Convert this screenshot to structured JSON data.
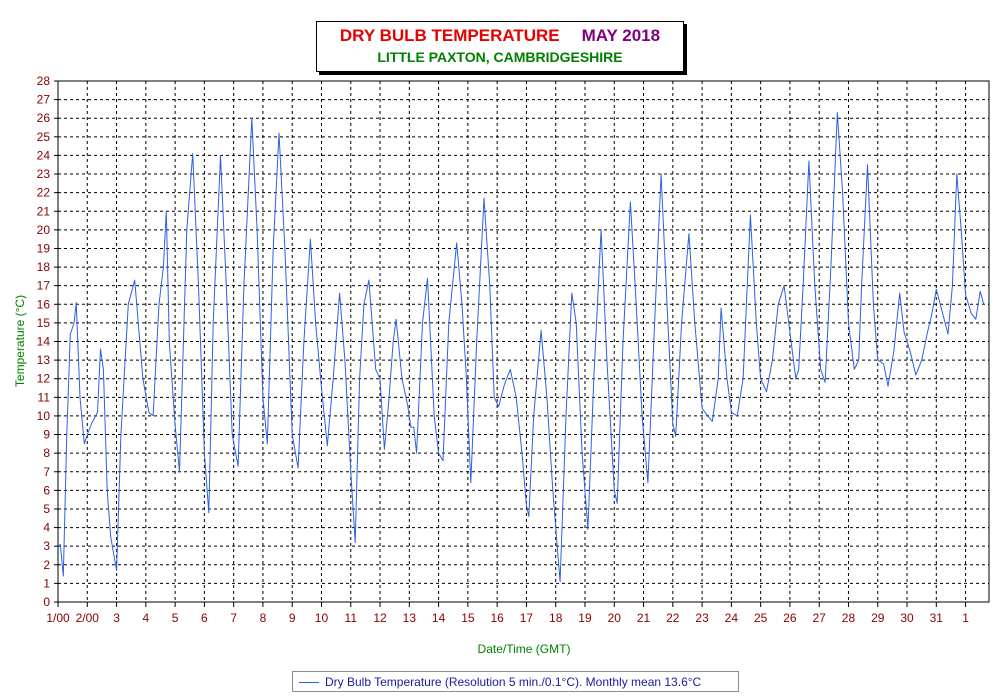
{
  "title": {
    "main": "DRY BULB TEMPERATURE",
    "month": "MAY 2018",
    "subtitle": "LITTLE PAXTON, CAMBRIDGESHIRE"
  },
  "legend": {
    "label": "Dry Bulb Temperature (Resolution 5 min./0.1°C). Monthly mean 13.6°C"
  },
  "colors": {
    "series": "#2b62e3",
    "axis_labels": "#8b0000",
    "axis_titles": "#008000",
    "title_main": "#e60000",
    "title_month": "#800080",
    "subtitle": "#008000"
  },
  "chart_data": {
    "type": "line",
    "xlabel": "Date/Time (GMT)",
    "ylabel": "Temperature (°C)",
    "ylim": [
      0,
      28
    ],
    "xlim": [
      0,
      31.8
    ],
    "grid": true,
    "legend_position": "bottom-center",
    "x_ticks": [
      {
        "x": 0,
        "label": "1/00"
      },
      {
        "x": 1,
        "label": "2/00"
      },
      {
        "x": 2,
        "label": "3"
      },
      {
        "x": 3,
        "label": "4"
      },
      {
        "x": 4,
        "label": "5"
      },
      {
        "x": 5,
        "label": "6"
      },
      {
        "x": 6,
        "label": "7"
      },
      {
        "x": 7,
        "label": "8"
      },
      {
        "x": 8,
        "label": "9"
      },
      {
        "x": 9,
        "label": "10"
      },
      {
        "x": 10,
        "label": "11"
      },
      {
        "x": 11,
        "label": "12"
      },
      {
        "x": 12,
        "label": "13"
      },
      {
        "x": 13,
        "label": "14"
      },
      {
        "x": 14,
        "label": "15"
      },
      {
        "x": 15,
        "label": "16"
      },
      {
        "x": 16,
        "label": "17"
      },
      {
        "x": 17,
        "label": "18"
      },
      {
        "x": 18,
        "label": "19"
      },
      {
        "x": 19,
        "label": "20"
      },
      {
        "x": 20,
        "label": "21"
      },
      {
        "x": 21,
        "label": "22"
      },
      {
        "x": 22,
        "label": "23"
      },
      {
        "x": 23,
        "label": "24"
      },
      {
        "x": 24,
        "label": "25"
      },
      {
        "x": 25,
        "label": "26"
      },
      {
        "x": 26,
        "label": "27"
      },
      {
        "x": 27,
        "label": "28"
      },
      {
        "x": 28,
        "label": "29"
      },
      {
        "x": 29,
        "label": "30"
      },
      {
        "x": 30,
        "label": "31"
      },
      {
        "x": 31,
        "label": "1"
      }
    ],
    "y_ticks": [
      0,
      1,
      2,
      3,
      4,
      5,
      6,
      7,
      8,
      9,
      10,
      11,
      12,
      13,
      14,
      15,
      16,
      17,
      18,
      19,
      20,
      21,
      22,
      23,
      24,
      25,
      26,
      27,
      28
    ],
    "series": [
      {
        "name": "Dry Bulb Temperature",
        "points": [
          [
            0.0,
            2.9
          ],
          [
            0.08,
            3.1
          ],
          [
            0.18,
            1.4
          ],
          [
            0.3,
            9.0
          ],
          [
            0.42,
            14.4
          ],
          [
            0.55,
            15.0
          ],
          [
            0.62,
            16.1
          ],
          [
            0.75,
            11.0
          ],
          [
            0.9,
            8.5
          ],
          [
            1.0,
            9.0
          ],
          [
            1.15,
            9.6
          ],
          [
            1.35,
            10.2
          ],
          [
            1.45,
            13.6
          ],
          [
            1.55,
            12.5
          ],
          [
            1.68,
            6.0
          ],
          [
            1.8,
            3.5
          ],
          [
            2.0,
            1.7
          ],
          [
            2.15,
            9.0
          ],
          [
            2.4,
            16.0
          ],
          [
            2.62,
            17.3
          ],
          [
            2.9,
            12.0
          ],
          [
            3.1,
            10.2
          ],
          [
            3.25,
            10.0
          ],
          [
            3.45,
            16.0
          ],
          [
            3.6,
            18.0
          ],
          [
            3.7,
            21.0
          ],
          [
            3.8,
            14.0
          ],
          [
            4.0,
            9.5
          ],
          [
            4.15,
            7.0
          ],
          [
            4.4,
            20.0
          ],
          [
            4.6,
            24.1
          ],
          [
            4.8,
            17.0
          ],
          [
            5.0,
            8.0
          ],
          [
            5.15,
            4.8
          ],
          [
            5.3,
            15.0
          ],
          [
            5.55,
            24.0
          ],
          [
            5.75,
            17.0
          ],
          [
            5.95,
            9.0
          ],
          [
            6.15,
            7.3
          ],
          [
            6.35,
            17.0
          ],
          [
            6.62,
            26.0
          ],
          [
            6.8,
            20.0
          ],
          [
            7.0,
            11.0
          ],
          [
            7.15,
            8.5
          ],
          [
            7.35,
            19.0
          ],
          [
            7.55,
            25.2
          ],
          [
            7.75,
            19.0
          ],
          [
            8.0,
            9.0
          ],
          [
            8.2,
            7.2
          ],
          [
            8.4,
            14.0
          ],
          [
            8.62,
            19.5
          ],
          [
            8.8,
            15.0
          ],
          [
            9.0,
            11.5
          ],
          [
            9.2,
            8.4
          ],
          [
            9.4,
            12.0
          ],
          [
            9.62,
            16.6
          ],
          [
            9.8,
            13.0
          ],
          [
            10.0,
            7.0
          ],
          [
            10.15,
            3.2
          ],
          [
            10.3,
            12.0
          ],
          [
            10.45,
            16.0
          ],
          [
            10.62,
            17.3
          ],
          [
            10.85,
            12.5
          ],
          [
            11.0,
            12.0
          ],
          [
            11.15,
            8.2
          ],
          [
            11.3,
            10.8
          ],
          [
            11.45,
            14.0
          ],
          [
            11.55,
            15.2
          ],
          [
            11.75,
            12.0
          ],
          [
            11.95,
            10.5
          ],
          [
            12.05,
            9.4
          ],
          [
            12.15,
            9.4
          ],
          [
            12.25,
            8.0
          ],
          [
            12.45,
            15.0
          ],
          [
            12.62,
            17.4
          ],
          [
            12.85,
            10.0
          ],
          [
            13.0,
            8.0
          ],
          [
            13.15,
            7.6
          ],
          [
            13.35,
            15.0
          ],
          [
            13.62,
            19.3
          ],
          [
            13.8,
            16.0
          ],
          [
            13.95,
            12.0
          ],
          [
            14.1,
            6.4
          ],
          [
            14.3,
            14.0
          ],
          [
            14.55,
            21.7
          ],
          [
            14.75,
            17.0
          ],
          [
            14.9,
            11.0
          ],
          [
            15.05,
            10.5
          ],
          [
            15.25,
            11.7
          ],
          [
            15.45,
            12.5
          ],
          [
            15.65,
            11.0
          ],
          [
            15.85,
            8.0
          ],
          [
            16.0,
            5.2
          ],
          [
            16.08,
            4.6
          ],
          [
            16.25,
            10.0
          ],
          [
            16.5,
            14.6
          ],
          [
            16.7,
            11.0
          ],
          [
            16.9,
            6.0
          ],
          [
            17.05,
            3.0
          ],
          [
            17.15,
            1.1
          ],
          [
            17.35,
            10.0
          ],
          [
            17.55,
            16.6
          ],
          [
            17.7,
            15.0
          ],
          [
            17.9,
            8.0
          ],
          [
            18.1,
            3.9
          ],
          [
            18.3,
            12.0
          ],
          [
            18.55,
            20.0
          ],
          [
            18.75,
            13.0
          ],
          [
            19.0,
            6.0
          ],
          [
            19.1,
            5.3
          ],
          [
            19.3,
            14.0
          ],
          [
            19.55,
            21.5
          ],
          [
            19.75,
            16.0
          ],
          [
            19.95,
            10.0
          ],
          [
            20.15,
            6.4
          ],
          [
            20.35,
            14.0
          ],
          [
            20.6,
            23.0
          ],
          [
            20.8,
            16.0
          ],
          [
            21.0,
            9.6
          ],
          [
            21.1,
            8.9
          ],
          [
            21.3,
            15.0
          ],
          [
            21.55,
            19.8
          ],
          [
            21.75,
            15.0
          ],
          [
            22.0,
            10.4
          ],
          [
            22.2,
            10.0
          ],
          [
            22.35,
            9.7
          ],
          [
            22.55,
            12.0
          ],
          [
            22.65,
            15.8
          ],
          [
            22.85,
            12.0
          ],
          [
            23.0,
            10.2
          ],
          [
            23.2,
            10.0
          ],
          [
            23.4,
            12.0
          ],
          [
            23.65,
            20.8
          ],
          [
            23.85,
            15.0
          ],
          [
            24.0,
            12.0
          ],
          [
            24.2,
            11.3
          ],
          [
            24.4,
            13.0
          ],
          [
            24.6,
            16.0
          ],
          [
            24.8,
            17.0
          ],
          [
            25.0,
            14.5
          ],
          [
            25.2,
            12.0
          ],
          [
            25.3,
            12.5
          ],
          [
            25.45,
            17.0
          ],
          [
            25.65,
            23.7
          ],
          [
            25.85,
            17.0
          ],
          [
            26.05,
            12.5
          ],
          [
            26.2,
            11.8
          ],
          [
            26.4,
            18.0
          ],
          [
            26.62,
            26.3
          ],
          [
            26.8,
            22.0
          ],
          [
            27.0,
            15.0
          ],
          [
            27.2,
            12.5
          ],
          [
            27.35,
            13.0
          ],
          [
            27.45,
            17.0
          ],
          [
            27.65,
            23.5
          ],
          [
            27.85,
            16.0
          ],
          [
            28.0,
            13.0
          ],
          [
            28.2,
            12.8
          ],
          [
            28.35,
            11.6
          ],
          [
            28.55,
            13.5
          ],
          [
            28.75,
            16.6
          ],
          [
            28.9,
            14.5
          ],
          [
            29.1,
            13.5
          ],
          [
            29.3,
            12.2
          ],
          [
            29.5,
            13.0
          ],
          [
            29.7,
            14.5
          ],
          [
            29.85,
            15.5
          ],
          [
            30.0,
            16.8
          ],
          [
            30.2,
            15.6
          ],
          [
            30.4,
            14.4
          ],
          [
            30.55,
            17.0
          ],
          [
            30.7,
            23.0
          ],
          [
            30.85,
            20.0
          ],
          [
            31.0,
            16.5
          ],
          [
            31.2,
            15.5
          ],
          [
            31.35,
            15.2
          ],
          [
            31.5,
            16.7
          ],
          [
            31.62,
            16.0
          ]
        ]
      }
    ]
  }
}
